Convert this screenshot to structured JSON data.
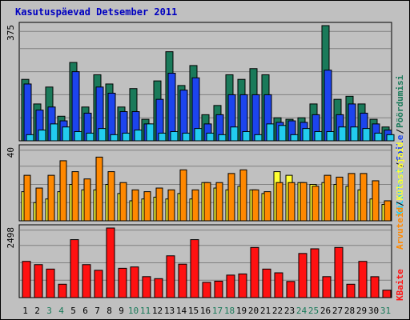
{
  "title": "Kasutuspäevad Detsember 2011",
  "colors": {
    "bg": "#c0c0c0",
    "grid": "#808080",
    "pages": "#1a7a5a",
    "files": "#1c44ee",
    "hits": "#22ccee",
    "visits": "#ff8800",
    "sites": "#ffff33",
    "kbytes": "#ff1111",
    "weekend": "#1a7a5a",
    "weekday": "#000000"
  },
  "chart_data": [
    {
      "type": "bar",
      "panel": "top",
      "ymax_label": "375",
      "ylim": [
        0,
        375
      ],
      "categories": [
        "1",
        "2",
        "3",
        "4",
        "5",
        "6",
        "7",
        "8",
        "9",
        "10",
        "11",
        "12",
        "13",
        "14",
        "15",
        "16",
        "17",
        "18",
        "19",
        "20",
        "21",
        "22",
        "23",
        "24",
        "25",
        "26",
        "27",
        "28",
        "29",
        "30",
        "31"
      ],
      "series": [
        {
          "name": "Pöördumisi",
          "values": [
            200,
            120,
            175,
            80,
            255,
            110,
            215,
            185,
            110,
            170,
            70,
            195,
            290,
            180,
            245,
            85,
            115,
            215,
            200,
            235,
            215,
            75,
            70,
            75,
            120,
            375,
            135,
            145,
            120,
            70,
            45
          ]
        },
        {
          "name": "Faile",
          "values": [
            185,
            100,
            110,
            65,
            225,
            90,
            175,
            155,
            95,
            95,
            55,
            135,
            220,
            165,
            205,
            55,
            85,
            150,
            150,
            150,
            150,
            60,
            65,
            60,
            85,
            230,
            85,
            120,
            90,
            55,
            35
          ]
        },
        {
          "name": "Külastusi",
          "values": [
            20,
            35,
            55,
            45,
            30,
            25,
            40,
            20,
            25,
            35,
            55,
            25,
            30,
            25,
            40,
            25,
            20,
            45,
            30,
            20,
            55,
            50,
            20,
            40,
            30,
            30,
            45,
            45,
            40,
            25,
            20
          ]
        }
      ],
      "legend": [
        "Pöördumisi",
        "Faile",
        "Külastusi"
      ]
    },
    {
      "type": "bar",
      "panel": "middle",
      "ymax_label": "40",
      "ylim": [
        0,
        40
      ],
      "series": [
        {
          "name": "Külastajaid",
          "values": [
            16,
            10,
            12,
            16,
            20,
            17,
            17,
            20,
            15,
            11,
            12,
            13,
            12,
            15,
            12,
            21,
            18,
            17,
            19,
            17,
            15,
            27,
            25,
            21,
            20,
            21,
            20,
            19,
            17,
            12,
            9
          ]
        },
        {
          "name": "Arvuteid",
          "values": [
            25,
            18,
            25,
            33,
            27,
            23,
            35,
            27,
            21,
            17,
            16,
            18,
            17,
            28,
            17,
            21,
            21,
            26,
            28,
            17,
            16,
            21,
            21,
            21,
            19,
            25,
            24,
            26,
            26,
            22,
            11
          ]
        }
      ],
      "legend": [
        "Arvuteid",
        "Külastajaid"
      ]
    },
    {
      "type": "bar",
      "panel": "bottom",
      "ymax_label": "2498",
      "ylim": [
        0,
        2498
      ],
      "series": [
        {
          "name": "KBaite",
          "values": [
            1300,
            1184,
            1024,
            480,
            2080,
            1184,
            980,
            2498,
            1052,
            1100,
            752,
            680,
            1500,
            1200,
            2080,
            548,
            590,
            808,
            850,
            1800,
            1024,
            890,
            580,
            1584,
            1752,
            752,
            1800,
            480,
            1300,
            750,
            268
          ]
        }
      ],
      "legend": [
        "KBaite"
      ]
    }
  ],
  "weekend_days": [
    "3",
    "4",
    "10",
    "11",
    "17",
    "18",
    "24",
    "25",
    "31"
  ]
}
